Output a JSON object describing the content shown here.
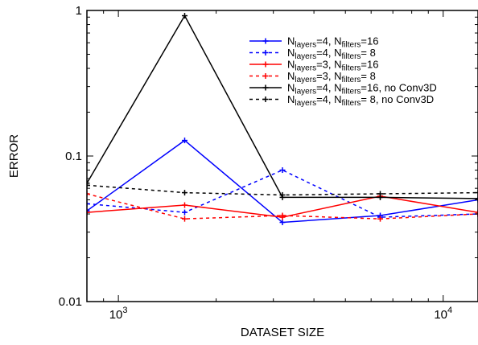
{
  "chart_data": {
    "type": "line",
    "xscale": "log",
    "yscale": "log",
    "xlim": [
      800,
      12800
    ],
    "ylim": [
      0.01,
      1
    ],
    "xlabel": "DATASET SIZE",
    "ylabel": "ERROR",
    "x_ticks": [
      {
        "value": 1000,
        "base": "10",
        "exp": "3"
      },
      {
        "value": 10000,
        "base": "10",
        "exp": "4"
      }
    ],
    "y_ticks": [
      {
        "value": 0.01,
        "label": "0.01"
      },
      {
        "value": 0.1,
        "label": "0.1"
      },
      {
        "value": 1,
        "label": "1"
      }
    ],
    "x": [
      800,
      1600,
      3200,
      6400,
      12800
    ],
    "legend_position": "top-right",
    "series": [
      {
        "name_prefix": "N",
        "sub1": "layers",
        "mid": "=4, N",
        "sub2": "filters",
        "suffix": "=16",
        "color": "#0000ff",
        "dash": "solid",
        "values": [
          0.042,
          0.128,
          0.035,
          0.039,
          0.05
        ]
      },
      {
        "name_prefix": "N",
        "sub1": "layers",
        "mid": "=4, N",
        "sub2": "filters",
        "suffix": "= 8",
        "color": "#0000ff",
        "dash": "dashed",
        "values": [
          0.047,
          0.041,
          0.08,
          0.038,
          0.04
        ]
      },
      {
        "name_prefix": "N",
        "sub1": "layers",
        "mid": "=3, N",
        "sub2": "filters",
        "suffix": "=16",
        "color": "#ff0000",
        "dash": "solid",
        "values": [
          0.041,
          0.046,
          0.038,
          0.053,
          0.041
        ]
      },
      {
        "name_prefix": "N",
        "sub1": "layers",
        "mid": "=3, N",
        "sub2": "filters",
        "suffix": "= 8",
        "color": "#ff0000",
        "dash": "dashed",
        "values": [
          0.055,
          0.037,
          0.039,
          0.037,
          0.04
        ]
      },
      {
        "name_prefix": "N",
        "sub1": "layers",
        "mid": "=4, N",
        "sub2": "filters",
        "suffix": "=16, no Conv3D",
        "color": "#000000",
        "dash": "solid",
        "values": [
          0.065,
          0.92,
          0.052,
          0.052,
          0.051
        ]
      },
      {
        "name_prefix": "N",
        "sub1": "layers",
        "mid": "=4, N",
        "sub2": "filters",
        "suffix": "= 8, no Conv3D",
        "color": "#000000",
        "dash": "dashed",
        "values": [
          0.063,
          0.056,
          0.054,
          0.055,
          0.056
        ]
      }
    ]
  }
}
